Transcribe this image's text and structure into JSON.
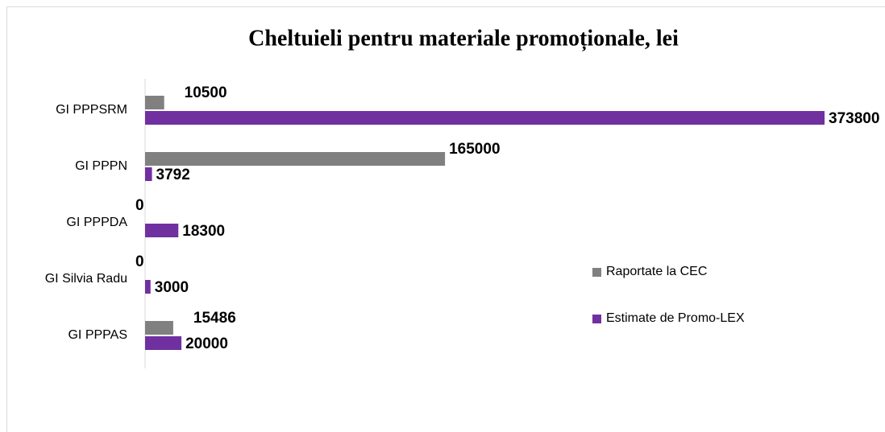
{
  "chart_data": {
    "type": "bar",
    "orientation": "horizontal",
    "title": "Cheltuieli pentru materiale promoționale, lei",
    "categories": [
      "GI PPPSRM",
      "GI PPPN",
      "GI PPPDA",
      "GI Silvia Radu",
      "GI PPPAS"
    ],
    "series": [
      {
        "name": "Raportate la CEC",
        "color": "#808080",
        "values": [
          10500,
          165000,
          0,
          0,
          15486
        ]
      },
      {
        "name": "Estimate de Promo-LEX",
        "color": "#7030a0",
        "values": [
          373800,
          3792,
          18300,
          3000,
          20000
        ]
      }
    ],
    "legend": "right"
  }
}
